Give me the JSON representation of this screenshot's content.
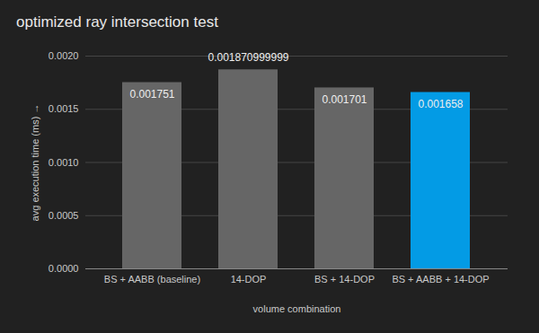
{
  "chart_data": {
    "type": "bar",
    "title": "optimized ray intersection test",
    "x_label": "volume combination",
    "y_label": "avg execution time (ms)",
    "categories": [
      "BS + AABB (baseline)",
      "14-DOP",
      "BS + 14-DOP",
      "BS + AABB + 14-DOP"
    ],
    "values": [
      0.001751,
      0.001870999999,
      0.001701,
      0.001658
    ],
    "colors": [
      "#666666",
      "#666666",
      "#666666",
      "#039be5"
    ],
    "ylim": [
      0,
      0.002
    ],
    "yticks": [
      {
        "value": 0,
        "label": "0.0000"
      },
      {
        "value": 0.0005,
        "label": "0.0005"
      },
      {
        "value": 0.001,
        "label": "0.0010"
      },
      {
        "value": 0.0015,
        "label": "0.0015"
      },
      {
        "value": 0.002,
        "label": "0.0020"
      }
    ],
    "grid": true,
    "data_labels": true
  }
}
